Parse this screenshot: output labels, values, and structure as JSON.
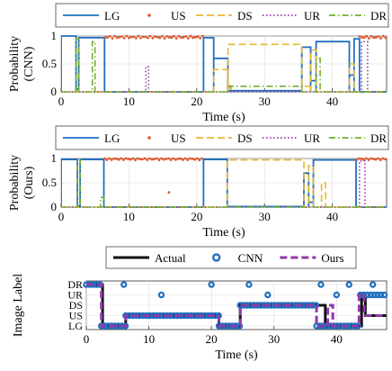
{
  "colors": {
    "LG": "#1f6fbf",
    "US": "#e0572b",
    "DS": "#e8b830",
    "UR": "#8e3aa8",
    "DR": "#77ad30",
    "Actual": "#111111",
    "CNN": "#1f6fbf",
    "Ours": "#8e3aa8"
  },
  "chart_data": [
    {
      "type": "line",
      "ylabel": [
        "Probability",
        "(CNN)"
      ],
      "xlabel": "Time (s)",
      "xlim": [
        0,
        48
      ],
      "ylim": [
        0,
        1
      ],
      "xticks": [
        "0",
        "10",
        "20",
        "30",
        "40"
      ],
      "yticks": [
        "0",
        "0.5",
        "1"
      ],
      "legend_position": "top",
      "series": [
        {
          "name": "LG",
          "style": "solid",
          "color_key": "LG",
          "segments": [
            [
              0,
              2.2,
              1
            ],
            [
              2.2,
              2.6,
              0.05
            ],
            [
              2.6,
              6.4,
              0.97
            ],
            [
              6.4,
              21,
              0
            ],
            [
              21,
              22.5,
              0.97
            ],
            [
              22.5,
              24.6,
              0.6
            ],
            [
              24.6,
              35.5,
              0.02
            ],
            [
              35.5,
              36.8,
              0.8
            ],
            [
              36.8,
              37.6,
              0.2
            ],
            [
              37.6,
              42.5,
              0.9
            ],
            [
              42.5,
              43.2,
              0.3
            ],
            [
              43.2,
              44,
              0.95
            ],
            [
              44,
              48,
              0
            ]
          ]
        },
        {
          "name": "US",
          "style": "dot",
          "color_key": "US",
          "segments": [
            [
              6.5,
              21,
              0.98
            ],
            [
              24.6,
              25.2,
              0.1
            ],
            [
              44,
              48,
              0.98
            ]
          ]
        },
        {
          "name": "DS",
          "style": "dash",
          "color_key": "DS",
          "segments": [
            [
              22.5,
              24.6,
              0.4
            ],
            [
              24.6,
              35.5,
              0.85
            ],
            [
              35.5,
              36.8,
              0.1
            ],
            [
              36.8,
              37.6,
              0.75
            ],
            [
              42.5,
              43.2,
              0.5
            ]
          ]
        },
        {
          "name": "UR",
          "style": "dotted",
          "color_key": "UR",
          "segments": [
            [
              12.5,
              12.9,
              0.45
            ],
            [
              44.3,
              45.2,
              0.9
            ]
          ]
        },
        {
          "name": "DR",
          "style": "dashdot",
          "color_key": "DR",
          "segments": [
            [
              2.2,
              2.6,
              0.95
            ],
            [
              4.6,
              5.0,
              0.9
            ],
            [
              25,
              35.5,
              0.1
            ],
            [
              37.6,
              38.2,
              0.6
            ]
          ]
        }
      ]
    },
    {
      "type": "line",
      "ylabel": [
        "Probability",
        "(Ours)"
      ],
      "xlabel": "Time (s)",
      "xlim": [
        0,
        48
      ],
      "ylim": [
        0,
        1
      ],
      "xticks": [
        "0",
        "10",
        "20",
        "30",
        "40"
      ],
      "yticks": [
        "0",
        "0.5",
        "1"
      ],
      "legend_position": "top",
      "series": [
        {
          "name": "LG",
          "style": "solid",
          "color_key": "LG",
          "segments": [
            [
              0,
              2.4,
              0.98
            ],
            [
              2.4,
              2.8,
              0.02
            ],
            [
              2.8,
              6.3,
              0.98
            ],
            [
              6.3,
              21,
              0
            ],
            [
              21,
              24.5,
              0.98
            ],
            [
              24.5,
              35.8,
              0.01
            ],
            [
              35.8,
              36.5,
              0.7
            ],
            [
              36.5,
              37.2,
              0.1
            ],
            [
              37.2,
              43.5,
              0.97
            ],
            [
              43.5,
              48,
              0
            ]
          ]
        },
        {
          "name": "US",
          "style": "dot",
          "color_key": "US",
          "segments": [
            [
              6.4,
              21,
              0.99
            ],
            [
              15.9,
              16.1,
              0.3
            ],
            [
              43.6,
              48,
              0.99
            ]
          ]
        },
        {
          "name": "DS",
          "style": "dash",
          "color_key": "DS",
          "segments": [
            [
              24.5,
              35.8,
              0.97
            ],
            [
              36.5,
              37.2,
              0.85
            ],
            [
              38.4,
              39.0,
              0.5
            ]
          ]
        },
        {
          "name": "UR",
          "style": "dotted",
          "color_key": "UR",
          "segments": [
            [
              44.0,
              44.8,
              0.95
            ]
          ]
        },
        {
          "name": "DR",
          "style": "dashdot",
          "color_key": "DR",
          "segments": [
            [
              2.4,
              2.8,
              0.97
            ],
            [
              5.8,
              6.3,
              0.2
            ]
          ]
        }
      ]
    },
    {
      "type": "line",
      "ylabel": [
        "Image Label"
      ],
      "xlabel": "Time (s)",
      "xlim": [
        0,
        48
      ],
      "categories": [
        "LG",
        "US",
        "DS",
        "UR",
        "DR"
      ],
      "xticks": [
        "0",
        "10",
        "20",
        "30",
        "40"
      ],
      "legend_position": "top",
      "series": [
        {
          "name": "Actual",
          "style": "solid",
          "color_key": "Actual",
          "steps": [
            [
              0,
              4
            ],
            [
              2.6,
              0
            ],
            [
              6.3,
              1
            ],
            [
              21.2,
              0
            ],
            [
              24.6,
              2
            ],
            [
              38.2,
              0
            ],
            [
              44,
              3
            ],
            [
              44.6,
              1
            ],
            [
              48,
              1
            ]
          ]
        },
        {
          "name": "CNN",
          "style": "circles",
          "color_key": "CNN",
          "runs": [
            [
              0,
              2.4,
              4
            ],
            [
              2.4,
              6.3,
              0
            ],
            [
              6.3,
              21.2,
              1
            ],
            [
              21.2,
              24.6,
              0
            ],
            [
              24.6,
              36.8,
              2
            ],
            [
              36.8,
              43.8,
              0
            ],
            [
              43.8,
              47.8,
              3
            ]
          ],
          "outliers": [
            [
              6,
              4
            ],
            [
              12,
              3
            ],
            [
              20,
              4
            ],
            [
              26,
              4
            ],
            [
              29,
              3
            ],
            [
              37.5,
              4
            ],
            [
              40,
              3
            ],
            [
              42,
              4
            ],
            [
              45.8,
              4
            ]
          ]
        },
        {
          "name": "Ours",
          "style": "dash",
          "color_key": "Ours",
          "steps": [
            [
              0,
              4
            ],
            [
              2.4,
              0
            ],
            [
              6.3,
              1
            ],
            [
              21.2,
              0
            ],
            [
              24.6,
              2
            ],
            [
              36.8,
              0
            ],
            [
              38.6,
              2
            ],
            [
              39.4,
              0
            ],
            [
              43.6,
              3
            ],
            [
              44.4,
              1
            ],
            [
              48,
              1
            ]
          ]
        }
      ]
    }
  ]
}
